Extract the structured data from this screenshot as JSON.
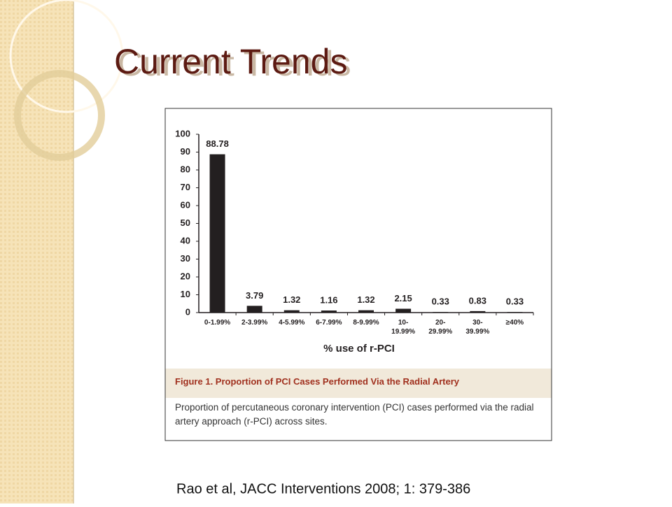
{
  "slide_title": "Current Trends",
  "citation": "Rao et al, JACC Interventions 2008; 1: 379-386",
  "chart_data": {
    "type": "bar",
    "categories": [
      "0-1.99%",
      "2-3.99%",
      "4-5.99%",
      "6-7.99%",
      "8-9.99%",
      "10-\n19.99%",
      "20-\n29.99%",
      "30-\n39.99%",
      "≥40%"
    ],
    "values": [
      88.78,
      3.79,
      1.32,
      1.16,
      1.32,
      2.15,
      0.33,
      0.83,
      0.33
    ],
    "color": "#231f20",
    "x_label": "% use of r-PCI",
    "ylim": [
      0,
      100
    ],
    "yticks": [
      0,
      10,
      20,
      30,
      40,
      50,
      60,
      70,
      80,
      90,
      100
    ],
    "caption_title": "Figure 1. Proportion of PCI Cases Performed Via the Radial Artery",
    "caption": "Proportion of percutaneous coronary intervention (PCI) cases performed via the radial artery approach (r-PCI) across sites."
  }
}
